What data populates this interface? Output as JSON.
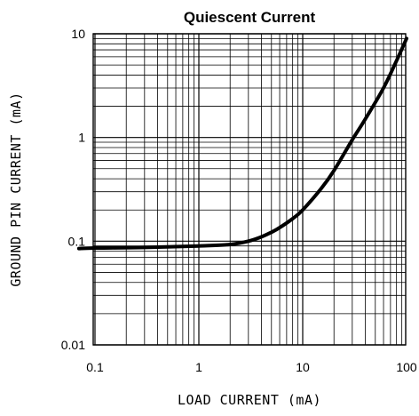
{
  "chart_data": {
    "type": "line",
    "title": "Quiescent Current",
    "xlabel": "LOAD CURRENT (mA)",
    "ylabel": "GROUND PIN CURRENT (mA)",
    "x_scale": "log",
    "y_scale": "log",
    "xlim": [
      0.07,
      100
    ],
    "ylim": [
      0.01,
      10
    ],
    "x_ticks": [
      "0.1",
      "1",
      "10",
      "100"
    ],
    "y_ticks": [
      "0.01",
      "0.1",
      "1",
      "10"
    ],
    "grid": true,
    "series": [
      {
        "x": [
          0.07,
          0.1,
          0.3,
          1,
          2,
          3,
          4,
          5,
          6,
          8,
          10,
          15,
          20,
          30,
          40,
          60,
          80,
          100
        ],
        "y": [
          0.085,
          0.086,
          0.087,
          0.09,
          0.093,
          0.1,
          0.11,
          0.122,
          0.135,
          0.165,
          0.2,
          0.32,
          0.48,
          0.95,
          1.5,
          3.0,
          5.5,
          9.0
        ]
      }
    ]
  }
}
